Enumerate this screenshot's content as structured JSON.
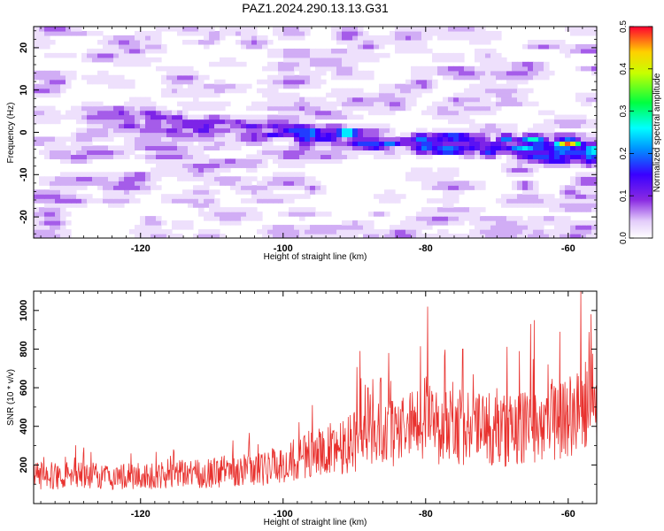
{
  "title": "PAZ1.2024.290.13.13.G31",
  "colors": {
    "signal_line": "#e8312e",
    "axis": "#000000",
    "background": "#ffffff"
  },
  "chart_data": [
    {
      "type": "heatmap",
      "xlabel": "Height of straight line (km)",
      "ylabel": "Frequency (Hz)",
      "xlim": [
        -135,
        -56
      ],
      "ylim": [
        -25,
        25
      ],
      "x_ticks": [
        -120,
        -100,
        -80,
        -60
      ],
      "y_ticks": [
        -20,
        -10,
        0,
        10,
        20
      ],
      "ridge": {
        "x": [
          -135,
          -120,
          -110,
          -100,
          -90,
          -80,
          -70,
          -60,
          -56
        ],
        "y": [
          5,
          3,
          1,
          0,
          -1,
          -2,
          -3,
          -5,
          -5
        ]
      },
      "peaks": [
        {
          "x": -60,
          "y": -2.5,
          "value": 0.5
        },
        {
          "x": -65,
          "y": -1.5,
          "value": 0.3
        },
        {
          "x": -91,
          "y": 0,
          "value": 0.35
        },
        {
          "x": -96,
          "y": 0,
          "value": 0.28
        },
        {
          "x": -78,
          "y": -2,
          "value": 0.2
        }
      ],
      "colorbar": {
        "label": "Normalized spectral amplitude",
        "range": [
          0.0,
          0.5
        ],
        "ticks": [
          "0.0",
          "0.1",
          "0.2",
          "0.3",
          "0.4",
          "0.5"
        ]
      }
    },
    {
      "type": "line",
      "xlabel": "Height of straight line (km)",
      "ylabel": "SNR (10 * v/v)",
      "xlim": [
        -135,
        -56
      ],
      "ylim": [
        0,
        1100
      ],
      "x_ticks": [
        -120,
        -100,
        -80,
        -60
      ],
      "y_ticks": [
        200,
        400,
        600,
        800,
        1000
      ],
      "series": [
        {
          "x": [
            -135,
            -130,
            -125,
            -120,
            -115,
            -110,
            -105,
            -100,
            -98,
            -96,
            -94,
            -92,
            -90,
            -88,
            -86,
            -84,
            -82,
            -80,
            -79,
            -78,
            -76,
            -74,
            -72,
            -70,
            -68,
            -66,
            -64,
            -62,
            -60,
            -58,
            -57,
            -56
          ],
          "y": [
            140,
            150,
            140,
            140,
            150,
            160,
            180,
            190,
            220,
            260,
            270,
            300,
            330,
            320,
            360,
            380,
            400,
            450,
            420,
            400,
            410,
            390,
            380,
            370,
            380,
            400,
            420,
            440,
            460,
            500,
            520,
            400
          ]
        }
      ],
      "peaks": [
        {
          "x": -79.7,
          "y": 1020
        },
        {
          "x": -58.2,
          "y": 1100
        },
        {
          "x": -56.8,
          "y": 980
        },
        {
          "x": -64.8,
          "y": 950
        },
        {
          "x": -65.3,
          "y": 930
        },
        {
          "x": -61.2,
          "y": 890
        },
        {
          "x": -74.8,
          "y": 800
        },
        {
          "x": -89.2,
          "y": 790
        },
        {
          "x": -85.2,
          "y": 780
        },
        {
          "x": -73.3,
          "y": 670
        },
        {
          "x": -86.3,
          "y": 650
        },
        {
          "x": -76.2,
          "y": 630
        },
        {
          "x": -88.1,
          "y": 600
        },
        {
          "x": -95.9,
          "y": 510
        }
      ]
    }
  ]
}
